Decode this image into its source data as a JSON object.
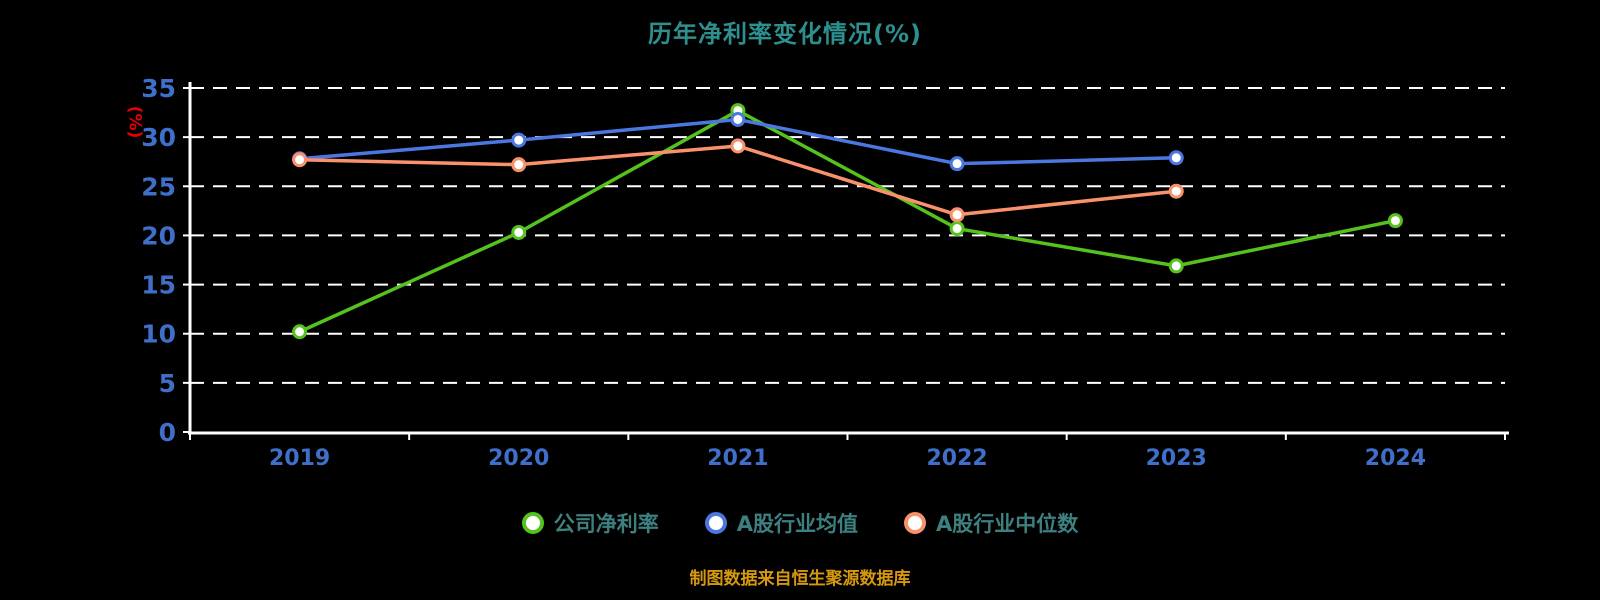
{
  "title": "历年净利率变化情况(%)",
  "footer": "制图数据来自恒生聚源数据库",
  "y_axis_unit": "(%)",
  "colors": {
    "background": "#000000",
    "title": "#2e8f8f",
    "axis_label": "#3f6fc8",
    "y_unit": "#e60000",
    "axis_line": "#ffffff",
    "gridline": "#ffffff",
    "legend_text": "#3e8080",
    "footer_text": "#d6980e",
    "marker_fill": "#ffffff"
  },
  "chart_data": {
    "type": "line",
    "title": "历年净利率变化情况(%)",
    "xlabel": "",
    "ylabel": "(%)",
    "categories": [
      "2019",
      "2020",
      "2021",
      "2022",
      "2023",
      "2024"
    ],
    "series": [
      {
        "name": "公司净利率",
        "color": "#55c21e",
        "values": [
          10.2,
          20.3,
          32.7,
          20.7,
          16.9,
          21.5
        ]
      },
      {
        "name": "A股行业均值",
        "color": "#4a77e0",
        "values": [
          27.8,
          29.7,
          31.8,
          27.3,
          27.9,
          null
        ]
      },
      {
        "name": "A股行业中位数",
        "color": "#f9926b",
        "values": [
          27.7,
          27.2,
          29.1,
          22.1,
          24.5,
          null
        ]
      }
    ],
    "ylim": [
      0,
      35
    ],
    "yticks": [
      0,
      5,
      10,
      15,
      20,
      25,
      30,
      35
    ],
    "grid": "horizontal-dashed-white",
    "legend_position": "bottom"
  }
}
